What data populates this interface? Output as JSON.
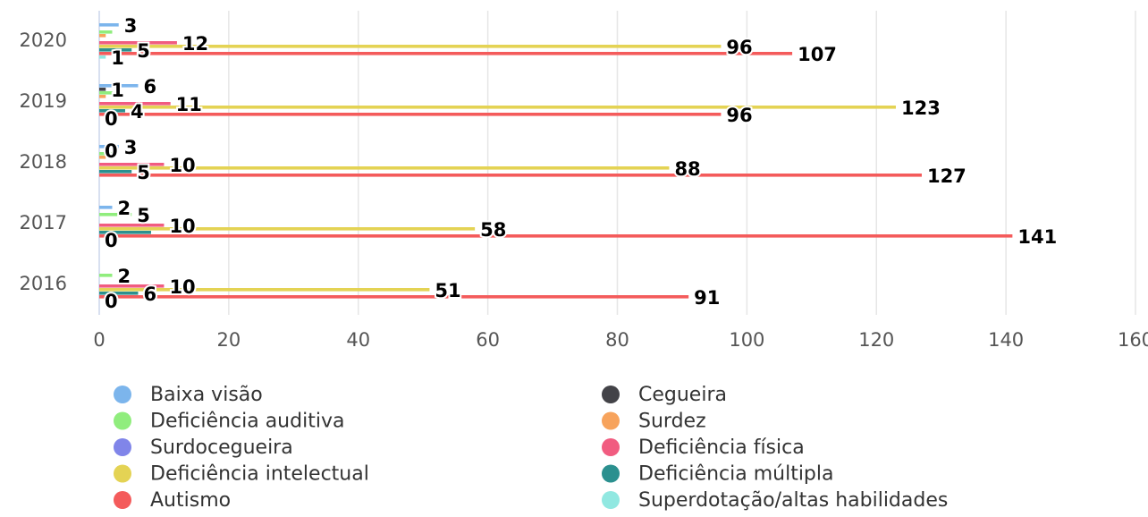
{
  "chart_data": {
    "type": "bar",
    "orientation": "horizontal",
    "categories": [
      "2020",
      "2019",
      "2018",
      "2017",
      "2016"
    ],
    "xlim": [
      0,
      160
    ],
    "xticks": [
      0,
      20,
      40,
      60,
      80,
      100,
      120,
      140,
      160
    ],
    "grid": true,
    "legend": "bottom",
    "series": [
      {
        "name": "Baixa visão",
        "color": "#7cb5ec",
        "values": [
          3,
          6,
          3,
          2,
          0
        ],
        "value_labels": [
          "3",
          "6",
          "3",
          "2",
          null
        ]
      },
      {
        "name": "Cegueira",
        "color": "#434348",
        "values": [
          0,
          1,
          0,
          0,
          0
        ],
        "value_labels": [
          null,
          "1",
          "0",
          null,
          null
        ]
      },
      {
        "name": "Deficiência auditiva",
        "color": "#90ed7d",
        "values": [
          2,
          2,
          2,
          5,
          2
        ],
        "value_labels": [
          null,
          null,
          null,
          "5",
          "2"
        ]
      },
      {
        "name": "Surdez",
        "color": "#f7a35c",
        "values": [
          1,
          1,
          1,
          0,
          0
        ],
        "value_labels": [
          null,
          null,
          null,
          null,
          null
        ]
      },
      {
        "name": "Surdocegueira",
        "color": "#8085e9",
        "values": [
          0,
          0,
          0,
          0,
          0
        ],
        "value_labels": [
          null,
          null,
          null,
          null,
          null
        ]
      },
      {
        "name": "Deficiência física",
        "color": "#f15c80",
        "values": [
          12,
          11,
          10,
          10,
          10
        ],
        "value_labels": [
          "12",
          "11",
          "10",
          "10",
          "10"
        ]
      },
      {
        "name": "Deficiência intelectual",
        "color": "#e4d354",
        "values": [
          96,
          123,
          88,
          58,
          51
        ],
        "value_labels": [
          "96",
          "123",
          "88",
          "58",
          "51"
        ]
      },
      {
        "name": "Deficiência múltipla",
        "color": "#2b908f",
        "values": [
          5,
          4,
          5,
          8,
          6
        ],
        "value_labels": [
          "5",
          "4",
          "5",
          null,
          "6"
        ]
      },
      {
        "name": "Autismo",
        "color": "#f45b5b",
        "values": [
          107,
          96,
          127,
          141,
          91
        ],
        "value_labels": [
          "107",
          "96",
          "127",
          "141",
          "91"
        ]
      },
      {
        "name": "Superdotação/altas habilidades",
        "color": "#91e8e1",
        "values": [
          1,
          0,
          0,
          0,
          0
        ],
        "value_labels": [
          "1",
          "0",
          null,
          "0",
          "0"
        ]
      }
    ]
  }
}
